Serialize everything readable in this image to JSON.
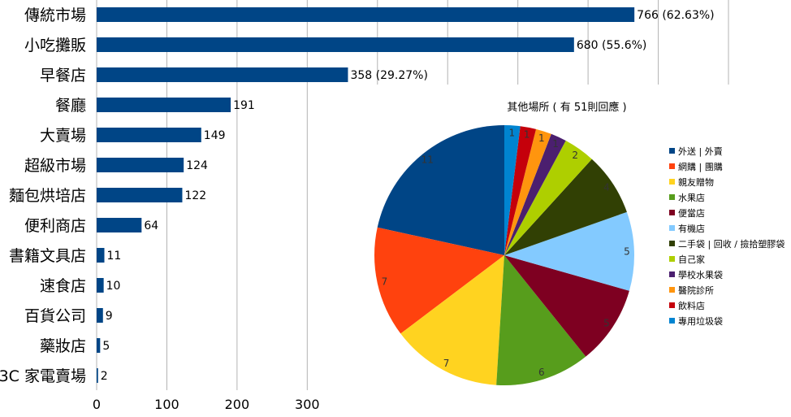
{
  "chart_data": [
    {
      "type": "bar",
      "orientation": "horizontal",
      "categories": [
        "傳統市場",
        "小吃攤販",
        "早餐店",
        "餐廳",
        "大賣場",
        "超級市場",
        "麵包烘培店",
        "便利商店",
        "書籍文具店",
        "速食店",
        "百貨公司",
        "藥妝店",
        "3C 家電賣場"
      ],
      "values": [
        766,
        680,
        358,
        191,
        149,
        124,
        122,
        64,
        11,
        10,
        9,
        5,
        2
      ],
      "value_labels": [
        "766 (62.63%)",
        "680 (55.6%)",
        "358 (29.27%)",
        "191",
        "149",
        "124",
        "122",
        "64",
        "11",
        "10",
        "9",
        "5",
        "2"
      ],
      "xlim": [
        0,
        900
      ],
      "xticks": [
        "0",
        "100",
        "200",
        "300",
        "400",
        "500",
        "600",
        "700",
        "800",
        "900"
      ],
      "grid": true,
      "bar_color": "#004586"
    },
    {
      "type": "pie",
      "title": "其他場所 ( 有 51則回應 )",
      "labels": [
        "外送 | 外賣",
        "網購 | 團購",
        "親友贈物",
        "水果店",
        "便當店",
        "有機店",
        "二手袋 | 回收 / 撿拾塑膠袋",
        "自己家",
        "學校水果袋",
        "醫院診所",
        "飲料店",
        "專用垃圾袋"
      ],
      "values": [
        11,
        7,
        7,
        6,
        5,
        5,
        4,
        2,
        1,
        1,
        1,
        1
      ],
      "colors": [
        "#004586",
        "#ff420e",
        "#ffd320",
        "#579d1c",
        "#7e0021",
        "#83caff",
        "#314004",
        "#aecf00",
        "#4b1f6f",
        "#ff950e",
        "#c5000b",
        "#0084d1"
      ],
      "legend": "right"
    }
  ]
}
